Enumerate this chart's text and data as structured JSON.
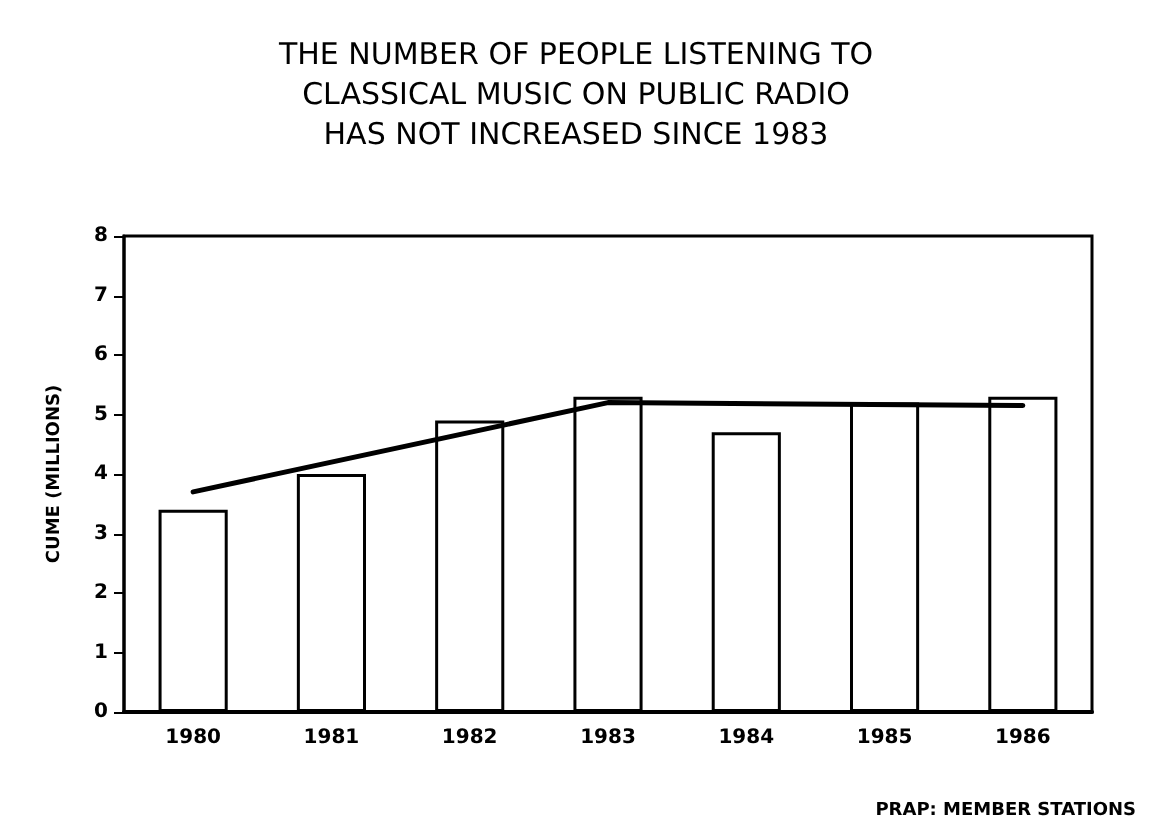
{
  "chart_data": {
    "type": "bar",
    "title": "THE NUMBER OF PEOPLE LISTENING TO\nCLASSICAL MUSIC ON PUBLIC RADIO\nHAS NOT INCREASED SINCE 1983",
    "ylabel": "CUME (MILLIONS)",
    "categories": [
      "1980",
      "1981",
      "1982",
      "1983",
      "1984",
      "1985",
      "1986"
    ],
    "series": [
      {
        "color": "#ffffff",
        "values": [
          3.4,
          4.0,
          4.9,
          5.3,
          4.7,
          5.2,
          5.3
        ]
      },
      {
        "type": "line",
        "color": "#000000",
        "values": [
          3.7,
          null,
          null,
          5.2,
          null,
          null,
          5.15
        ]
      }
    ],
    "ylim": [
      0,
      8
    ],
    "yticks": [
      0,
      1,
      2,
      3,
      4,
      5,
      6,
      7,
      8
    ],
    "grid": false,
    "marker": "none",
    "annotations": [
      "PRAP: MEMBER STATIONS"
    ]
  }
}
